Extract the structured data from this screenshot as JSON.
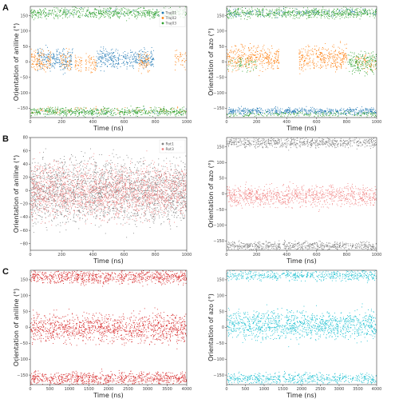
{
  "panel_labels": [
    "A",
    "B",
    "C"
  ],
  "chart_data": [
    {
      "id": "A-left",
      "type": "scatter",
      "panel": "A",
      "xlabel": "Time (ns)",
      "ylabel": "Orientation of aniline (°)",
      "xlim": [
        0,
        1000
      ],
      "ylim": [
        -180,
        180
      ],
      "xticks": [
        0,
        200,
        400,
        600,
        800,
        1000
      ],
      "yticks": [
        -150,
        -100,
        -50,
        0,
        50,
        100,
        150
      ],
      "legend": {
        "placement": "top-right",
        "entries": [
          "Traj01",
          "Traj02",
          "Traj03"
        ]
      },
      "series": [
        {
          "name": "Traj01",
          "color": "#1f77b4",
          "segments": [
            {
              "x": [
                0,
                1000
              ],
              "y_center": 162,
              "y_spread": 12,
              "weight": 0.05
            },
            {
              "x": [
                40,
                270
              ],
              "y_center": 10,
              "y_spread": 28,
              "weight": 1
            },
            {
              "x": [
                420,
                790
              ],
              "y_center": 10,
              "y_spread": 28,
              "weight": 1
            },
            {
              "x": [
                0,
                1000
              ],
              "y_center": -160,
              "y_spread": 10,
              "weight": 0.05
            }
          ]
        },
        {
          "name": "Traj02",
          "color": "#ff7f0e",
          "segments": [
            {
              "x": [
                0,
                130
              ],
              "y_center": 5,
              "y_spread": 28,
              "weight": 1
            },
            {
              "x": [
                190,
                260
              ],
              "y_center": 5,
              "y_spread": 28,
              "weight": 0.8
            },
            {
              "x": [
                280,
                330
              ],
              "y_center": 0,
              "y_spread": 25,
              "weight": 0.8
            },
            {
              "x": [
                350,
                420
              ],
              "y_center": -5,
              "y_spread": 28,
              "weight": 0.8
            },
            {
              "x": [
                690,
                760
              ],
              "y_center": 0,
              "y_spread": 28,
              "weight": 1
            },
            {
              "x": [
                920,
                1000
              ],
              "y_center": 10,
              "y_spread": 25,
              "weight": 0.6
            },
            {
              "x": [
                0,
                1000
              ],
              "y_center": -155,
              "y_spread": 10,
              "weight": 0.15
            }
          ]
        },
        {
          "name": "Traj03",
          "color": "#2ca02c",
          "segments": [
            {
              "x": [
                0,
                1000
              ],
              "y_center": 160,
              "y_spread": 15,
              "weight": 1
            },
            {
              "x": [
                0,
                1000
              ],
              "y_center": -160,
              "y_spread": 12,
              "weight": 1
            }
          ]
        }
      ]
    },
    {
      "id": "A-right",
      "type": "scatter",
      "panel": "A",
      "xlabel": "Time (ns)",
      "ylabel": "Orientation of azo (°)",
      "xlim": [
        0,
        1000
      ],
      "ylim": [
        -180,
        180
      ],
      "xticks": [
        0,
        200,
        400,
        600,
        800,
        1000
      ],
      "yticks": [
        -150,
        -100,
        -50,
        0,
        50,
        100,
        150
      ],
      "series": [
        {
          "name": "Traj01",
          "color": "#1f77b4",
          "segments": [
            {
              "x": [
                0,
                1000
              ],
              "y_center": 160,
              "y_spread": 12,
              "weight": 0.25
            },
            {
              "x": [
                0,
                1000
              ],
              "y_center": -158,
              "y_spread": 10,
              "weight": 1
            }
          ]
        },
        {
          "name": "Traj02",
          "color": "#ff7f0e",
          "segments": [
            {
              "x": [
                0,
                350
              ],
              "y_center": 15,
              "y_spread": 35,
              "weight": 1
            },
            {
              "x": [
                480,
                800
              ],
              "y_center": 15,
              "y_spread": 35,
              "weight": 1
            },
            {
              "x": [
                850,
                1000
              ],
              "y_center": 0,
              "y_spread": 25,
              "weight": 0.5
            }
          ]
        },
        {
          "name": "Traj03",
          "color": "#2ca02c",
          "segments": [
            {
              "x": [
                0,
                1000
              ],
              "y_center": 160,
              "y_spread": 15,
              "weight": 1
            },
            {
              "x": [
                800,
                1000
              ],
              "y_center": 0,
              "y_spread": 30,
              "weight": 1
            },
            {
              "x": [
                0,
                200
              ],
              "y_center": -5,
              "y_spread": 25,
              "weight": 0.3
            },
            {
              "x": [
                0,
                1000
              ],
              "y_center": -168,
              "y_spread": 8,
              "weight": 0.4
            }
          ]
        }
      ]
    },
    {
      "id": "B-left",
      "type": "scatter",
      "panel": "B",
      "xlabel": "Time (ns)",
      "ylabel": "Orientation of aniline (°)",
      "xlim": [
        0,
        1000
      ],
      "ylim": [
        -90,
        80
      ],
      "xticks": [
        0,
        200,
        400,
        600,
        800,
        1000
      ],
      "yticks": [
        -80,
        -60,
        -40,
        -20,
        0,
        20,
        40,
        60,
        80
      ],
      "legend": {
        "placement": "top-right",
        "entries": [
          "Rot1",
          "Rot3"
        ]
      },
      "series": [
        {
          "name": "Rot1",
          "color": "#7f7f7f",
          "segments": [
            {
              "x": [
                0,
                1000
              ],
              "y_center": 0,
              "y_spread": 42,
              "weight": 1
            }
          ]
        },
        {
          "name": "Rot3",
          "color": "#f08080",
          "segments": [
            {
              "x": [
                0,
                1000
              ],
              "y_center": 0,
              "y_spread": 36,
              "weight": 1
            }
          ]
        }
      ]
    },
    {
      "id": "B-right",
      "type": "scatter",
      "panel": "B",
      "xlabel": "Time (ns)",
      "ylabel": "Orientation of azo (°)",
      "xlim": [
        0,
        1000
      ],
      "ylim": [
        -180,
        180
      ],
      "xticks": [
        0,
        200,
        400,
        600,
        800,
        1000
      ],
      "yticks": [
        -150,
        -100,
        -50,
        0,
        50,
        100,
        150
      ],
      "series": [
        {
          "name": "Rot1",
          "color": "#7f7f7f",
          "segments": [
            {
              "x": [
                0,
                1000
              ],
              "y_center": 165,
              "y_spread": 14,
              "weight": 1
            },
            {
              "x": [
                0,
                1000
              ],
              "y_center": -165,
              "y_spread": 12,
              "weight": 1
            }
          ]
        },
        {
          "name": "Rot3",
          "color": "#f08080",
          "segments": [
            {
              "x": [
                0,
                1000
              ],
              "y_center": -5,
              "y_spread": 30,
              "weight": 1
            }
          ]
        }
      ]
    },
    {
      "id": "C-left",
      "type": "scatter",
      "panel": "C",
      "xlabel": "Time (ns)",
      "ylabel": "Orientation of aniline (°)",
      "xlim": [
        0,
        4000
      ],
      "ylim": [
        -180,
        180
      ],
      "xticks": [
        0,
        500,
        1000,
        1500,
        2000,
        2500,
        3000,
        3500,
        4000
      ],
      "yticks": [
        -150,
        -100,
        -50,
        0,
        50,
        100,
        150
      ],
      "series": [
        {
          "name": "",
          "color": "#d62728",
          "segments": [
            {
              "x": [
                0,
                4000
              ],
              "y_center": 160,
              "y_spread": 20,
              "weight": 1
            },
            {
              "x": [
                0,
                4000
              ],
              "y_center": 0,
              "y_spread": 40,
              "weight": 1
            },
            {
              "x": [
                0,
                4000
              ],
              "y_center": -160,
              "y_spread": 20,
              "weight": 1
            }
          ]
        }
      ]
    },
    {
      "id": "C-right",
      "type": "scatter",
      "panel": "C",
      "xlabel": "Time (ns)",
      "ylabel": "Orientation of azo (°)",
      "xlim": [
        0,
        4000
      ],
      "ylim": [
        -180,
        180
      ],
      "xticks": [
        0,
        500,
        1000,
        1500,
        2000,
        2500,
        3000,
        3500,
        4000
      ],
      "yticks": [
        -150,
        -100,
        -50,
        0,
        50,
        100,
        150
      ],
      "series": [
        {
          "name": "",
          "color": "#17becf",
          "segments": [
            {
              "x": [
                0,
                4000
              ],
              "y_center": 165,
              "y_spread": 14,
              "weight": 0.8
            },
            {
              "x": [
                0,
                4000
              ],
              "y_center": 10,
              "y_spread": 40,
              "weight": 1
            },
            {
              "x": [
                0,
                4000
              ],
              "y_center": -160,
              "y_spread": 15,
              "weight": 0.8
            }
          ]
        }
      ]
    }
  ]
}
